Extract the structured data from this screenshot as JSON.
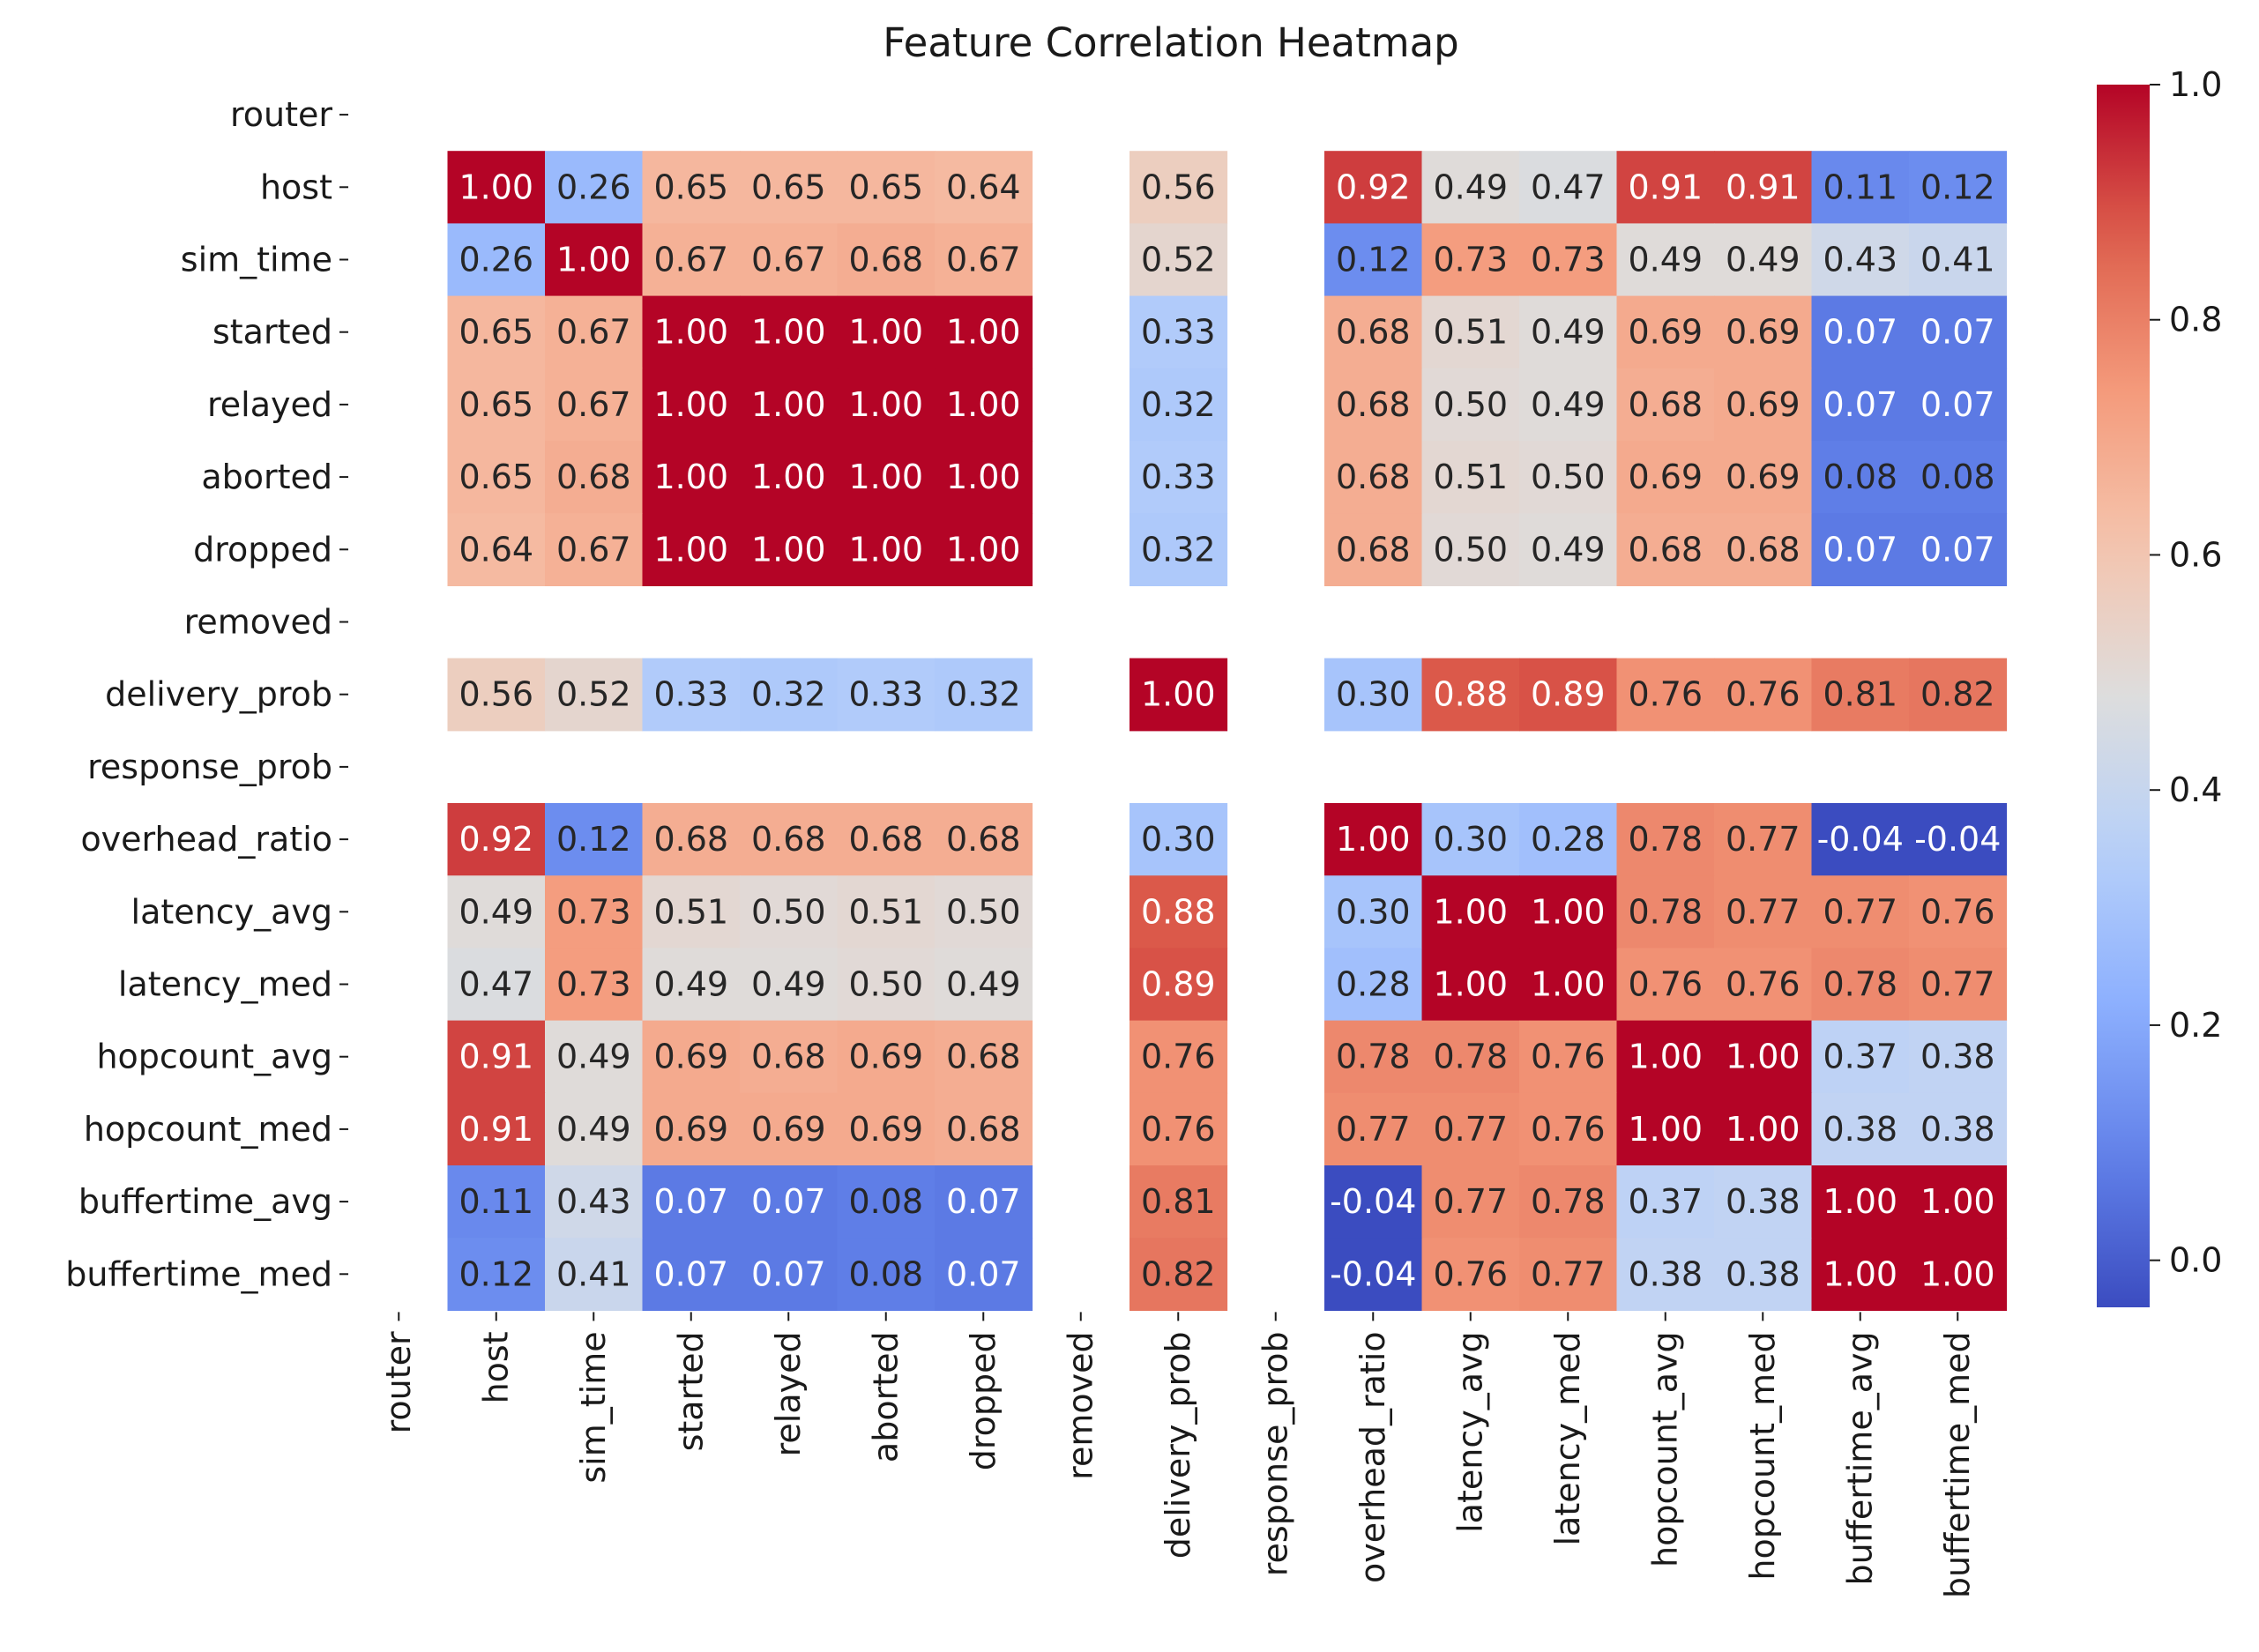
{
  "chart_data": {
    "type": "heatmap",
    "title": "Feature Correlation Heatmap",
    "xlabel": "",
    "ylabel": "",
    "row_labels": [
      "router",
      "host",
      "sim_time",
      "started",
      "relayed",
      "aborted",
      "dropped",
      "removed",
      "delivery_prob",
      "response_prob",
      "overhead_ratio",
      "latency_avg",
      "latency_med",
      "hopcount_avg",
      "hopcount_med",
      "buffertime_avg",
      "buffertime_med"
    ],
    "col_labels": [
      "router",
      "host",
      "sim_time",
      "started",
      "relayed",
      "aborted",
      "dropped",
      "removed",
      "delivery_prob",
      "response_prob",
      "overhead_ratio",
      "latency_avg",
      "latency_med",
      "hopcount_avg",
      "hopcount_med",
      "buffertime_avg",
      "buffertime_med"
    ],
    "values": [
      [
        null,
        null,
        null,
        null,
        null,
        null,
        null,
        null,
        null,
        null,
        null,
        null,
        null,
        null,
        null,
        null,
        null
      ],
      [
        null,
        1.0,
        0.26,
        0.65,
        0.65,
        0.65,
        0.64,
        null,
        0.56,
        null,
        0.92,
        0.49,
        0.47,
        0.91,
        0.91,
        0.11,
        0.12
      ],
      [
        null,
        0.26,
        1.0,
        0.67,
        0.67,
        0.68,
        0.67,
        null,
        0.52,
        null,
        0.12,
        0.73,
        0.73,
        0.49,
        0.49,
        0.43,
        0.41
      ],
      [
        null,
        0.65,
        0.67,
        1.0,
        1.0,
        1.0,
        1.0,
        null,
        0.33,
        null,
        0.68,
        0.51,
        0.49,
        0.69,
        0.69,
        0.07,
        0.07
      ],
      [
        null,
        0.65,
        0.67,
        1.0,
        1.0,
        1.0,
        1.0,
        null,
        0.32,
        null,
        0.68,
        0.5,
        0.49,
        0.68,
        0.69,
        0.07,
        0.07
      ],
      [
        null,
        0.65,
        0.68,
        1.0,
        1.0,
        1.0,
        1.0,
        null,
        0.33,
        null,
        0.68,
        0.51,
        0.5,
        0.69,
        0.69,
        0.08,
        0.08
      ],
      [
        null,
        0.64,
        0.67,
        1.0,
        1.0,
        1.0,
        1.0,
        null,
        0.32,
        null,
        0.68,
        0.5,
        0.49,
        0.68,
        0.68,
        0.07,
        0.07
      ],
      [
        null,
        null,
        null,
        null,
        null,
        null,
        null,
        null,
        null,
        null,
        null,
        null,
        null,
        null,
        null,
        null,
        null
      ],
      [
        null,
        0.56,
        0.52,
        0.33,
        0.32,
        0.33,
        0.32,
        null,
        1.0,
        null,
        0.3,
        0.88,
        0.89,
        0.76,
        0.76,
        0.81,
        0.82
      ],
      [
        null,
        null,
        null,
        null,
        null,
        null,
        null,
        null,
        null,
        null,
        null,
        null,
        null,
        null,
        null,
        null,
        null
      ],
      [
        null,
        0.92,
        0.12,
        0.68,
        0.68,
        0.68,
        0.68,
        null,
        0.3,
        null,
        1.0,
        0.3,
        0.28,
        0.78,
        0.77,
        -0.04,
        -0.04
      ],
      [
        null,
        0.49,
        0.73,
        0.51,
        0.5,
        0.51,
        0.5,
        null,
        0.88,
        null,
        0.3,
        1.0,
        1.0,
        0.78,
        0.77,
        0.77,
        0.76
      ],
      [
        null,
        0.47,
        0.73,
        0.49,
        0.49,
        0.5,
        0.49,
        null,
        0.89,
        null,
        0.28,
        1.0,
        1.0,
        0.76,
        0.76,
        0.78,
        0.77
      ],
      [
        null,
        0.91,
        0.49,
        0.69,
        0.68,
        0.69,
        0.68,
        null,
        0.76,
        null,
        0.78,
        0.78,
        0.76,
        1.0,
        1.0,
        0.37,
        0.38
      ],
      [
        null,
        0.91,
        0.49,
        0.69,
        0.69,
        0.69,
        0.68,
        null,
        0.76,
        null,
        0.77,
        0.77,
        0.76,
        1.0,
        1.0,
        0.38,
        0.38
      ],
      [
        null,
        0.11,
        0.43,
        0.07,
        0.07,
        0.08,
        0.07,
        null,
        0.81,
        null,
        -0.04,
        0.77,
        0.78,
        0.37,
        0.38,
        1.0,
        1.0
      ],
      [
        null,
        0.12,
        0.41,
        0.07,
        0.07,
        0.08,
        0.07,
        null,
        0.82,
        null,
        -0.04,
        0.76,
        0.77,
        0.38,
        0.38,
        1.0,
        1.0
      ]
    ],
    "colormap": "coolwarm",
    "vmin": -0.04,
    "vmax": 1.0,
    "colorbar_ticks": [
      0.0,
      0.2,
      0.4,
      0.6,
      0.8,
      1.0
    ],
    "colorbar_tick_labels": [
      "0.0",
      "0.2",
      "0.4",
      "0.6",
      "0.8",
      "1.0"
    ],
    "annotation_format": "0.00",
    "grid": false,
    "colorbar_position": "right"
  }
}
